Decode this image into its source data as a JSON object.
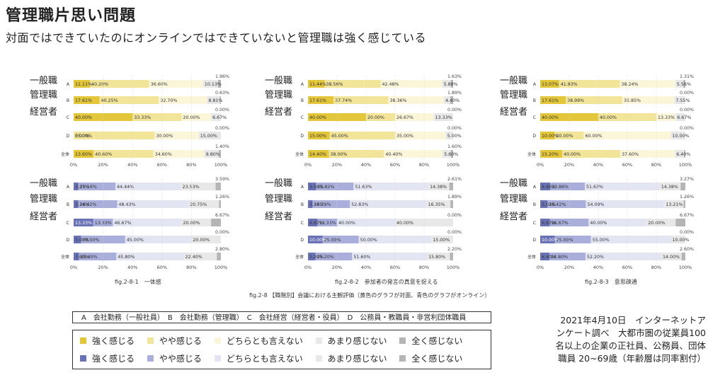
{
  "title": "管理職片思い問題",
  "subtitle": "対面ではできていたのにオンラインではできていないと管理職は強く感じている",
  "group_labels": [
    "一般職",
    "管理職",
    "経営者"
  ],
  "row_labels": [
    "A",
    "B",
    "C",
    "D",
    "全体"
  ],
  "axis_ticks": [
    "0%",
    "20%",
    "40%",
    "60%",
    "80%",
    "100%"
  ],
  "colors": {
    "yellow": [
      "#e3c63a",
      "#f2e59a",
      "#fbf6d9",
      "#e8e8e8",
      "#b5b5b5"
    ],
    "blue": [
      "#6a72b6",
      "#a9aedb",
      "#e4e5f3",
      "#e8e8e8",
      "#b5b5b5"
    ]
  },
  "captions": {
    "c1": "fig.2-8-1　一体感",
    "c2": "fig.2-8-2　参加者の発言の真意を捉える",
    "c3": "fig.2-8-3　意思疎通",
    "main": "fig.2-8 【職階別】会議における主観評価（黄色のグラフが対面、青色のグラフがオンライン）"
  },
  "legend_abcd": "A　会社勤務（一般社員）　B　会社勤務（管理職）　C　会社経営（経営者・役員）　D　公務員・教職員・非営利団体職員",
  "legend_yellow": [
    "強く感じる",
    "やや感じる",
    "どちらとも言えない",
    "あまり感じない",
    "全く感じない"
  ],
  "legend_blue": [
    "強く感じる",
    "やや感じる",
    "どちらとも言えない",
    "あまり感じない",
    "全く感じない"
  ],
  "note_lines": [
    "2021年4月10日　インターネットア",
    "ンケート調べ　大都市圏の従業員100",
    "名以上の企業の正社員、公務員、団体",
    "職員 20~69歳（年齢層は同率割付）"
  ],
  "chart_data": [
    {
      "type": "bar",
      "stacked": true,
      "orientation": "horizontal",
      "caption": "fig.2-8-1　一体感",
      "palette": "yellow",
      "categories": [
        "A",
        "B",
        "C",
        "D",
        "全体"
      ],
      "values": [
        [
          11.11,
          40.2,
          36.6,
          10.13,
          1.96
        ],
        [
          17.61,
          40.25,
          32.7,
          8.81,
          0.63
        ],
        [
          40.0,
          33.33,
          20.0,
          6.67,
          0.0
        ],
        [
          0.0,
          55.0,
          30.0,
          15.0,
          0.0
        ],
        [
          13.6,
          40.6,
          34.6,
          9.8,
          1.4
        ]
      ],
      "labels": [
        [
          "11.11%",
          "40.20%",
          "36.60%",
          "10.13%",
          "1.96%"
        ],
        [
          "17.61%",
          "40.25%",
          "32.70%",
          "8.81%",
          "0.63%"
        ],
        [
          "40.00%",
          "33.33%",
          "20.00%",
          "6.67%",
          "0.00%"
        ],
        [
          "0.00%",
          "55.00%",
          "30.00%",
          "15.00%",
          "0.00%"
        ],
        [
          "13.60%",
          "40.60%",
          "34.60%",
          "9.80%",
          "1.40%"
        ]
      ],
      "xlim": [
        0,
        100
      ]
    },
    {
      "type": "bar",
      "stacked": true,
      "orientation": "horizontal",
      "caption": "fig.2-8-2　参加者の発言の真意を捉える",
      "palette": "yellow",
      "categories": [
        "A",
        "B",
        "C",
        "D",
        "全体"
      ],
      "values": [
        [
          11.44,
          38.56,
          42.48,
          5.88,
          1.63
        ],
        [
          17.61,
          37.74,
          38.36,
          4.4,
          1.89
        ],
        [
          40.0,
          20.0,
          26.67,
          13.33,
          0.0
        ],
        [
          15.0,
          45.0,
          35.0,
          5.0,
          0.0
        ],
        [
          14.4,
          38.0,
          40.4,
          5.6,
          1.6
        ]
      ],
      "labels": [
        [
          "11.44%",
          "38.56%",
          "42.48%",
          "5.88%",
          "1.63%"
        ],
        [
          "17.61%",
          "37.74%",
          "38.36%",
          "4.40%",
          "1.89%"
        ],
        [
          "40.00%",
          "20.00%",
          "26.67%",
          "13.33%",
          "0.00%"
        ],
        [
          "15.00%",
          "45.00%",
          "35.00%",
          "5.00%",
          "0.00%"
        ],
        [
          "14.40%",
          "38.00%",
          "40.40%",
          "5.60%",
          "1.60%"
        ]
      ],
      "xlim": [
        0,
        100
      ]
    },
    {
      "type": "bar",
      "stacked": true,
      "orientation": "horizontal",
      "caption": "fig.2-8-3　意思疎通",
      "palette": "yellow",
      "categories": [
        "A",
        "B",
        "C",
        "D",
        "全体"
      ],
      "values": [
        [
          13.07,
          41.83,
          38.24,
          5.56,
          1.31
        ],
        [
          17.61,
          38.99,
          35.85,
          7.55,
          0.0
        ],
        [
          40.0,
          40.0,
          13.33,
          6.67,
          0.0
        ],
        [
          10.0,
          20.0,
          60.0,
          10.0,
          0.0
        ],
        [
          15.2,
          40.0,
          37.6,
          6.4,
          0.8
        ]
      ],
      "labels": [
        [
          "13.07%",
          "41.83%",
          "38.24%",
          "5.56%",
          "1.31%"
        ],
        [
          "17.61%",
          "38.99%",
          "35.85%",
          "7.55%",
          "0.00%"
        ],
        [
          "40.00%",
          "40.00%",
          "13.33%",
          "6.67%",
          "0.00%"
        ],
        [
          "10.00%",
          "20.00%",
          "60.00%",
          "10.00%",
          "0.00%"
        ],
        [
          "15.20%",
          "40.00%",
          "37.60%",
          "6.40%",
          ""
        ]
      ],
      "xlim": [
        0,
        100
      ]
    },
    {
      "type": "bar",
      "stacked": true,
      "orientation": "horizontal",
      "caption": "fig.2-8-1　一体感",
      "palette": "blue",
      "categories": [
        "A",
        "B",
        "C",
        "D",
        "全体"
      ],
      "values": [
        [
          3.27,
          25.16,
          44.44,
          23.53,
          3.59
        ],
        [
          3.14,
          26.42,
          48.43,
          20.75,
          1.26
        ],
        [
          13.33,
          13.33,
          46.67,
          20.0,
          6.67
        ],
        [
          5.0,
          30.0,
          45.0,
          20.0,
          0.0
        ],
        [
          3.6,
          25.4,
          45.8,
          22.4,
          2.8
        ]
      ],
      "labels": [
        [
          "3.27%",
          "25.16%",
          "44.44%",
          "23.53%",
          "3.59%"
        ],
        [
          "3.14%",
          "26.42%",
          "48.43%",
          "20.75%",
          "1.26%"
        ],
        [
          "13.33%",
          "13.33%",
          "46.67%",
          "20.00%",
          "6.67%"
        ],
        [
          "5.00%",
          "30.00%",
          "45.00%",
          "20.00%",
          "0.00%"
        ],
        [
          "3.60%",
          "25.40%",
          "45.80%",
          "22.40%",
          "2.80%"
        ]
      ],
      "xlim": [
        0,
        100
      ]
    },
    {
      "type": "bar",
      "stacked": true,
      "orientation": "horizontal",
      "caption": "fig.2-8-2　参加者の発言の真意を捉える",
      "palette": "blue",
      "categories": [
        "A",
        "B",
        "C",
        "D",
        "全体"
      ],
      "values": [
        [
          5.56,
          25.82,
          51.63,
          14.38,
          2.61
        ],
        [
          3.14,
          25.79,
          52.83,
          16.35,
          1.89
        ],
        [
          6.67,
          13.33,
          40.0,
          40.0,
          0.0
        ],
        [
          10.0,
          25.0,
          50.0,
          15.0,
          0.0
        ],
        [
          5.2,
          25.2,
          51.6,
          15.8,
          2.2
        ]
      ],
      "labels": [
        [
          "5.56%",
          "25.82%",
          "51.63%",
          "14.38%",
          "2.61%"
        ],
        [
          "3.14%",
          "25.79%",
          "52.83%",
          "16.35%",
          "1.89%"
        ],
        [
          "6.67%",
          "13.33%",
          "40.00%",
          "40.00%",
          "0.00%"
        ],
        [
          "10.00%",
          "25.00%",
          "50.00%",
          "15.00%",
          "0.00%"
        ],
        [
          "5.20%",
          "25.20%",
          "51.60%",
          "15.80%",
          "2.20%"
        ]
      ],
      "xlim": [
        0,
        100
      ]
    },
    {
      "type": "bar",
      "stacked": true,
      "orientation": "horizontal",
      "caption": "fig.2-8-3　意思疎通",
      "palette": "blue",
      "categories": [
        "A",
        "B",
        "C",
        "D",
        "全体"
      ],
      "values": [
        [
          6.86,
          23.86,
          51.63,
          14.38,
          3.27
        ],
        [
          5.03,
          26.42,
          54.09,
          13.21,
          1.26
        ],
        [
          6.67,
          26.67,
          40.0,
          20.0,
          6.67
        ],
        [
          10.0,
          25.0,
          55.0,
          10.0,
          0.0
        ],
        [
          6.4,
          24.8,
          52.2,
          14.0,
          2.6
        ]
      ],
      "labels": [
        [
          "6.86%",
          "23.86%",
          "51.63%",
          "14.38%",
          "3.27%"
        ],
        [
          "5.03%",
          "26.42%",
          "54.09%",
          "13.21%",
          "1.26%"
        ],
        [
          "6.67%",
          "26.67%",
          "40.00%",
          "20.00%",
          "6.67%"
        ],
        [
          "10.00%",
          "25.00%",
          "55.00%",
          "10.00%",
          "0.00%"
        ],
        [
          "6.40%",
          "24.80%",
          "52.20%",
          "14.00%",
          "2.60%"
        ]
      ],
      "xlim": [
        0,
        100
      ]
    }
  ]
}
